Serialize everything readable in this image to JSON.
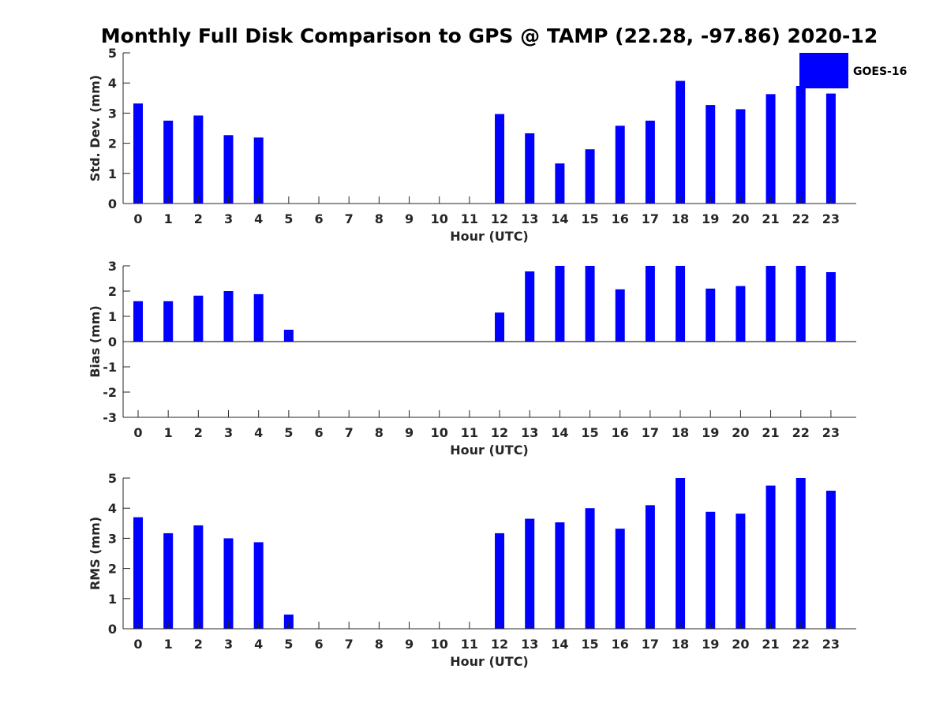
{
  "chart_data": {
    "title": "Monthly Full Disk Comparison to GPS @ TAMP (22.28, -97.86) 2020-12",
    "type": "bar",
    "categories": [
      "0",
      "1",
      "2",
      "3",
      "4",
      "5",
      "6",
      "7",
      "8",
      "9",
      "10",
      "11",
      "12",
      "13",
      "14",
      "15",
      "16",
      "17",
      "18",
      "19",
      "20",
      "21",
      "22",
      "23"
    ],
    "bar_color": "#0000ff",
    "legend": {
      "entries": [
        "GOES-16"
      ],
      "placement": "top-right"
    },
    "grid": false,
    "panels": [
      {
        "id": "std",
        "ylabel": "Std. Dev. (mm)",
        "xlabel": "Hour (UTC)",
        "ylim": [
          0,
          5
        ],
        "yticks": [
          "0",
          "1",
          "2",
          "3",
          "4",
          "5"
        ],
        "series": [
          {
            "name": "GOES-16",
            "values": [
              3.32,
              2.75,
              2.92,
              2.27,
              2.19,
              null,
              null,
              null,
              null,
              null,
              null,
              null,
              2.97,
              2.33,
              1.33,
              1.8,
              2.58,
              2.75,
              4.07,
              3.27,
              3.13,
              3.63,
              3.9,
              3.65
            ]
          }
        ]
      },
      {
        "id": "bias",
        "ylabel": "Bias (mm)",
        "xlabel": "Hour (UTC)",
        "ylim": [
          -3,
          3
        ],
        "yticks": [
          "-3",
          "-2",
          "-1",
          "0",
          "1",
          "2",
          "3"
        ],
        "series": [
          {
            "name": "GOES-16",
            "values": [
              1.6,
              1.6,
              1.82,
              2.0,
              1.88,
              0.47,
              null,
              null,
              null,
              null,
              null,
              null,
              1.15,
              2.78,
              3.0,
              3.0,
              2.07,
              3.0,
              3.0,
              2.1,
              2.2,
              3.0,
              3.0,
              2.75
            ]
          }
        ]
      },
      {
        "id": "rms",
        "ylabel": "RMS (mm)",
        "xlabel": "Hour (UTC)",
        "ylim": [
          0,
          5
        ],
        "yticks": [
          "0",
          "1",
          "2",
          "3",
          "4",
          "5"
        ],
        "series": [
          {
            "name": "GOES-16",
            "values": [
              3.7,
              3.17,
              3.43,
              3.0,
              2.87,
              0.47,
              null,
              null,
              null,
              null,
              null,
              null,
              3.17,
              3.65,
              3.53,
              4.0,
              3.32,
              4.1,
              5.0,
              3.88,
              3.82,
              4.75,
              5.0,
              4.58
            ]
          }
        ]
      }
    ]
  }
}
